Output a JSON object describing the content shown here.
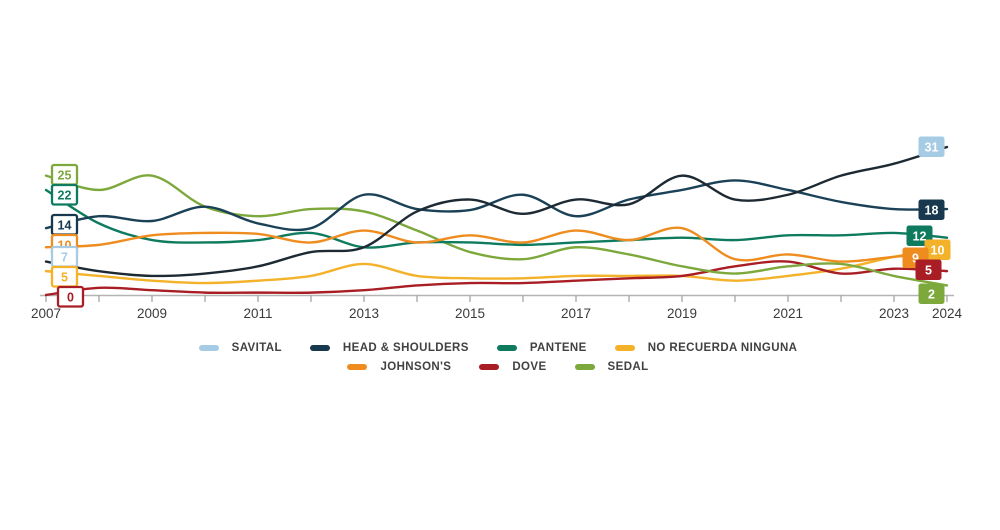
{
  "chart_data": {
    "type": "line",
    "x": [
      2007,
      2008,
      2009,
      2010,
      2011,
      2012,
      2013,
      2014,
      2015,
      2016,
      2017,
      2018,
      2019,
      2020,
      2021,
      2022,
      2023,
      2024
    ],
    "x_tick_label_years": [
      2007,
      2009,
      2011,
      2013,
      2015,
      2017,
      2019,
      2021,
      2023,
      2024
    ],
    "ylim": [
      0,
      33
    ],
    "grid": false,
    "legend_position": "bottom-center-two-rows",
    "series": [
      {
        "name": "SAVITAL",
        "color": "#a6cbe4",
        "line_color": "#1d2a33",
        "start_label": "7",
        "end_label": "31",
        "values": [
          7,
          5,
          4,
          4.5,
          6,
          9,
          10,
          17.5,
          20,
          17,
          20,
          19,
          25,
          20,
          21,
          25,
          27.5,
          31
        ]
      },
      {
        "name": "HEAD & SHOULDERS",
        "color": "#17384e",
        "line_color": "#1b4157",
        "start_label": "14",
        "end_label": "18",
        "values": [
          14,
          16.5,
          15.5,
          18.5,
          15,
          14,
          21,
          18,
          17.8,
          21,
          16.5,
          20,
          22,
          24,
          22,
          19.5,
          18,
          18
        ]
      },
      {
        "name": "PANTENE",
        "color": "#0e7b5f",
        "line_color": "#0e7b5f",
        "start_label": "22",
        "end_label": "12",
        "values": [
          22,
          15,
          11.5,
          11,
          11.5,
          13,
          10,
          11,
          11,
          10.5,
          11,
          11.5,
          12,
          11.5,
          12.5,
          12.5,
          13,
          12
        ]
      },
      {
        "name": "NO RECUERDA NINGUNA",
        "color": "#f3b229",
        "line_color": "#f3b229",
        "start_label": "5",
        "end_label": "10",
        "values": [
          5,
          4,
          3,
          2.5,
          3,
          4,
          6.5,
          4,
          3.5,
          3.5,
          4,
          4,
          4,
          3,
          4,
          5.5,
          8,
          10
        ]
      },
      {
        "name": "JOHNSON'S",
        "color": "#ef8c1f",
        "line_color": "#ef8c1f",
        "start_label": "10",
        "end_label": "9",
        "values": [
          10,
          10.5,
          12.5,
          13,
          12.8,
          11,
          13.5,
          11,
          12.5,
          11,
          13.5,
          11.5,
          14,
          7.5,
          8.5,
          7,
          8,
          9
        ]
      },
      {
        "name": "DOVE",
        "color": "#a81e24",
        "line_color": "#a81e24",
        "start_label": "0",
        "end_label": "5",
        "values": [
          0,
          1.5,
          1,
          0.5,
          0.5,
          0.5,
          1,
          2,
          2.5,
          2.5,
          3,
          3.5,
          4,
          6,
          7,
          4.5,
          5.5,
          5
        ]
      },
      {
        "name": "SEDAL",
        "color": "#7da83c",
        "line_color": "#7da83c",
        "start_label": "25",
        "end_label": "2",
        "values": [
          25,
          22,
          25,
          18.5,
          16.5,
          18,
          17.5,
          13.5,
          9,
          7.5,
          10,
          8.5,
          6,
          4.5,
          6,
          6.5,
          4,
          2
        ]
      }
    ],
    "legend_rows": [
      [
        "SAVITAL",
        "HEAD & SHOULDERS",
        "PANTENE",
        "NO RECUERDA NINGUNA"
      ],
      [
        "JOHNSON'S",
        "DOVE",
        "SEDAL"
      ]
    ],
    "axis_color": "#b4b4b4",
    "tick_color": "#9e9e9e",
    "tick_label_color": "#3b3b3b"
  }
}
